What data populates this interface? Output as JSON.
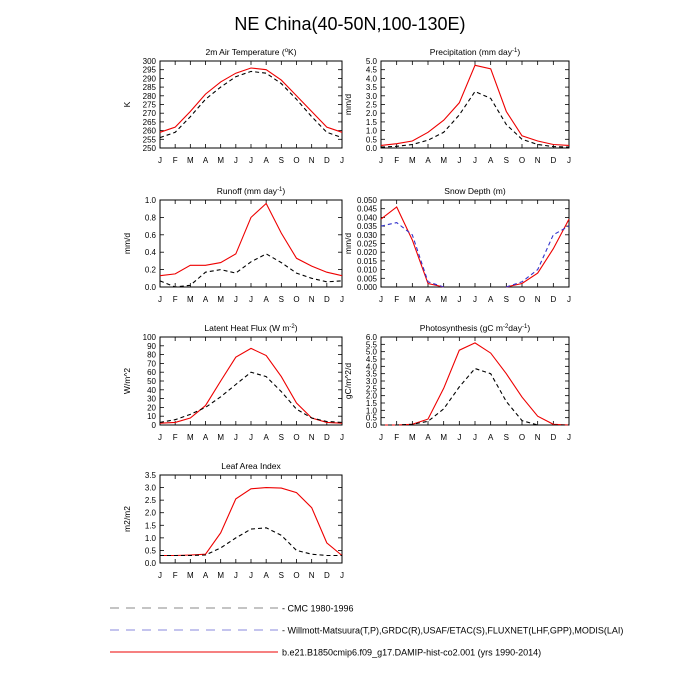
{
  "figure_title": "NE China(40-50N,100-130E)",
  "months": [
    "J",
    "F",
    "M",
    "A",
    "M",
    "J",
    "J",
    "A",
    "S",
    "O",
    "N",
    "D",
    "J"
  ],
  "legend": [
    {
      "label": "CMC 1980-1996",
      "color": "#888888",
      "dash": true
    },
    {
      "label": "Willmott-Matsuura(T,P),GRDC(R),USAF/ETAC(S),FLUXNET(LHF,GPP),MODIS(LAI)",
      "color": "#8888dd",
      "dash": true
    },
    {
      "label": "b.e21.B1850cmip6.f09_g17.DAMIP-hist-co2.001 (yrs 1990-2014)",
      "color": "#ee0000",
      "dash": false
    }
  ],
  "chart_data": [
    {
      "type": "line",
      "title_pre": "2m Air Temperature (",
      "title_sup": "o",
      "title_post": "K)",
      "ylabel": "K",
      "ylim": [
        250,
        300
      ],
      "yticks": [
        "250",
        "255",
        "260",
        "265",
        "270",
        "275",
        "280",
        "285",
        "290",
        "295",
        "300"
      ],
      "series": [
        {
          "color": "#ee0000",
          "dash": false,
          "values": [
            259,
            262,
            271,
            281,
            288,
            293,
            296,
            295,
            289,
            280,
            271,
            262,
            259
          ]
        },
        {
          "color": "#000000",
          "dash": true,
          "values": [
            256,
            259,
            268,
            278,
            285,
            291,
            294,
            293,
            287,
            278,
            268,
            259,
            256
          ]
        }
      ]
    },
    {
      "type": "line",
      "title_pre": "Precipitation (mm day",
      "title_sup": "-1",
      "title_post": ")",
      "ylabel": "mm/d",
      "ylim": [
        0,
        5
      ],
      "yticks": [
        "0.0",
        "0.5",
        "1.0",
        "1.5",
        "2.0",
        "2.5",
        "3.0",
        "3.5",
        "4.0",
        "4.5",
        "5.0"
      ],
      "series": [
        {
          "color": "#ee0000",
          "dash": false,
          "values": [
            0.15,
            0.25,
            0.4,
            0.9,
            1.6,
            2.6,
            4.75,
            4.55,
            2.1,
            0.7,
            0.4,
            0.2,
            0.15
          ]
        },
        {
          "color": "#000000",
          "dash": true,
          "values": [
            0.05,
            0.1,
            0.2,
            0.45,
            0.9,
            1.9,
            3.25,
            2.85,
            1.35,
            0.5,
            0.2,
            0.08,
            0.05
          ]
        }
      ]
    },
    {
      "type": "line",
      "title_pre": "Runoff (mm day",
      "title_sup": "-1",
      "title_post": ")",
      "ylabel": "mm/d",
      "ylim": [
        0,
        1
      ],
      "yticks": [
        "0.0",
        "0.2",
        "0.4",
        "0.6",
        "0.8",
        "1.0"
      ],
      "series": [
        {
          "color": "#ee0000",
          "dash": false,
          "values": [
            0.13,
            0.15,
            0.25,
            0.25,
            0.28,
            0.38,
            0.8,
            0.96,
            0.62,
            0.33,
            0.24,
            0.17,
            0.13
          ]
        },
        {
          "color": "#000000",
          "dash": true,
          "values": [
            0.07,
            0.0,
            0.02,
            0.17,
            0.2,
            0.16,
            0.29,
            0.38,
            0.28,
            0.16,
            0.1,
            0.06,
            0.07
          ]
        }
      ]
    },
    {
      "type": "line",
      "title_pre": "Snow Depth (m)",
      "title_sup": "",
      "title_post": "",
      "ylabel": "mm/d",
      "ylim": [
        0,
        0.05
      ],
      "yticks": [
        "0.000",
        "0.005",
        "0.010",
        "0.015",
        "0.020",
        "0.025",
        "0.030",
        "0.035",
        "0.040",
        "0.045",
        "0.050"
      ],
      "series": [
        {
          "color": "#ee0000",
          "dash": false,
          "values": [
            0.039,
            0.046,
            0.027,
            0.002,
            0.0,
            null,
            null,
            null,
            0.0,
            0.002,
            0.008,
            0.022,
            0.039
          ]
        },
        {
          "color": "#3333cc",
          "dash": true,
          "values": [
            0.035,
            0.037,
            0.03,
            0.003,
            0.0,
            null,
            null,
            null,
            0.0,
            0.003,
            0.01,
            0.03,
            0.035
          ]
        }
      ]
    },
    {
      "type": "line",
      "title_pre": "Latent Heat Flux (W m",
      "title_sup": "-2",
      "title_post": ")",
      "ylabel": "W/m^2",
      "ylim": [
        0,
        100
      ],
      "yticks": [
        "0",
        "10",
        "20",
        "30",
        "40",
        "50",
        "60",
        "70",
        "80",
        "90",
        "100"
      ],
      "series": [
        {
          "color": "#ee0000",
          "dash": false,
          "values": [
            2,
            3,
            8,
            22,
            50,
            77,
            87,
            79,
            55,
            25,
            8,
            3,
            2
          ]
        },
        {
          "color": "#000000",
          "dash": true,
          "values": [
            3,
            6,
            12,
            20,
            32,
            46,
            60,
            55,
            38,
            18,
            8,
            4,
            3
          ]
        }
      ]
    },
    {
      "type": "line",
      "title_pre": "Photosynthesis (gC m",
      "title_sup": "-2",
      "title_post": "day",
      "title_sup2": "-1",
      "title_post2": ")",
      "ylabel": "gC/m^2/d",
      "ylim": [
        0,
        6
      ],
      "yticks": [
        "0.0",
        "0.5",
        "1.0",
        "1.5",
        "2.0",
        "2.5",
        "3.0",
        "3.5",
        "4.0",
        "4.5",
        "5.0",
        "5.5",
        "6.0"
      ],
      "series": [
        {
          "color": "#ee0000",
          "dash": false,
          "values": [
            0.0,
            0.0,
            0.05,
            0.4,
            2.5,
            5.1,
            5.6,
            4.9,
            3.5,
            1.9,
            0.6,
            0.05,
            0.0
          ]
        },
        {
          "color": "#000000",
          "dash": true,
          "values": [
            0.0,
            0.0,
            0.05,
            0.25,
            1.1,
            2.6,
            3.85,
            3.5,
            1.6,
            0.3,
            0.0,
            0.0,
            0.0
          ]
        }
      ]
    },
    {
      "type": "line",
      "title_pre": "Leaf Area Index",
      "title_sup": "",
      "title_post": "",
      "ylabel": "m2/m2",
      "ylim": [
        0,
        3.5
      ],
      "yticks": [
        "0.0",
        "0.5",
        "1.0",
        "1.5",
        "2.0",
        "2.5",
        "3.0",
        "3.5"
      ],
      "series": [
        {
          "color": "#ee0000",
          "dash": false,
          "values": [
            0.3,
            0.3,
            0.32,
            0.35,
            1.2,
            2.55,
            2.95,
            3.0,
            2.98,
            2.8,
            2.2,
            0.8,
            0.3
          ]
        },
        {
          "color": "#000000",
          "dash": true,
          "values": [
            0.3,
            0.3,
            0.3,
            0.32,
            0.6,
            1.0,
            1.35,
            1.4,
            1.1,
            0.5,
            0.35,
            0.3,
            0.3
          ]
        }
      ]
    }
  ]
}
